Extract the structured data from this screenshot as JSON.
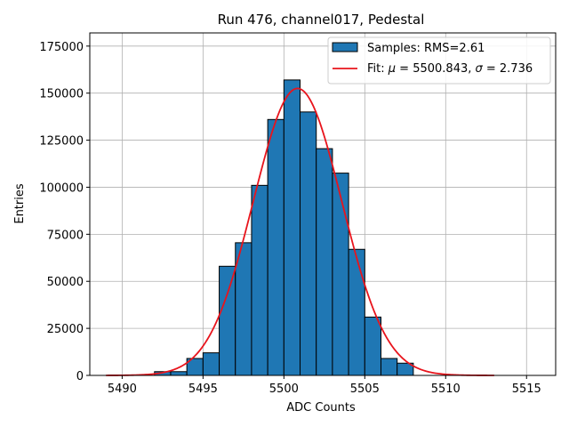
{
  "chart_data": {
    "type": "bar",
    "title": "Run 476, channel017, Pedestal",
    "xlabel": "ADC Counts",
    "ylabel": "Entries",
    "xlim": [
      5488.0,
      5516.8
    ],
    "ylim": [
      0,
      182000
    ],
    "xticks": [
      5490,
      5495,
      5500,
      5505,
      5510,
      5515
    ],
    "xtick_labels": [
      "5490",
      "5495",
      "5500",
      "5505",
      "5510",
      "5515"
    ],
    "yticks": [
      0,
      25000,
      50000,
      75000,
      100000,
      125000,
      150000,
      175000
    ],
    "ytick_labels": [
      "0",
      "25000",
      "50000",
      "75000",
      "100000",
      "125000",
      "150000",
      "175000"
    ],
    "grid": true,
    "histogram": {
      "name": "Samples: RMS=2.61",
      "color": "#1f77b4",
      "edgecolor": "#000000",
      "bin_edges": [
        5492.0,
        5493.0,
        5494.0,
        5495.0,
        5496.0,
        5497.0,
        5498.0,
        5499.0,
        5500.0,
        5501.0,
        5502.0,
        5503.0,
        5504.0,
        5505.0,
        5506.0,
        5507.0,
        5508.0
      ],
      "counts": [
        2000,
        2000,
        9000,
        12000,
        58000,
        70500,
        101000,
        136000,
        157000,
        140000,
        120500,
        107500,
        67000,
        31000,
        9000,
        6500
      ]
    },
    "fit": {
      "name": "Fit: μ = 5500.843, σ = 2.736",
      "label_prefix": "Fit: ",
      "mu_symbol": "μ",
      "mu_text": " = 5500.843, ",
      "sigma_symbol": "σ",
      "sigma_text": " = 2.736",
      "mu": 5500.843,
      "sigma": 2.736,
      "amplitude": 152500,
      "x_range": [
        5489.0,
        5513.0
      ],
      "color": "#e8141c"
    },
    "legend": {
      "location": "top-right",
      "entries": [
        "Samples: RMS=2.61",
        "Fit: μ = 5500.843, σ = 2.736"
      ]
    }
  }
}
